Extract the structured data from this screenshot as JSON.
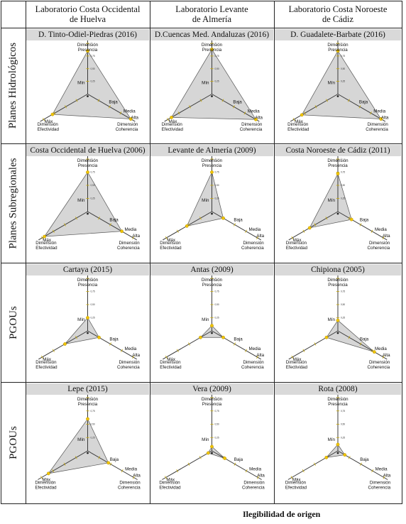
{
  "columns": [
    "Laboratorio Costa Occidental\nde Huelva",
    "Laboratorio Levante\nde Almería",
    "Laboratorio Costa Noroeste\nde Cádiz"
  ],
  "rows": [
    "Planes Hidrológicos",
    "Planes Subregionales",
    "PGOUs",
    "PGOUs"
  ],
  "axis_labels": {
    "presencia": "Dimensión\nPresencia",
    "efectividad": "Dimensión\nEfectividad",
    "coherencia": "Dimensión\nCoherencia"
  },
  "scale_labels": {
    "max": "Máx",
    "min": "Mín",
    "baja": "Baja",
    "media": "Media",
    "alta": "Alta"
  },
  "ticks": [
    "0,25",
    "0,50",
    "0,75",
    "1"
  ],
  "footer": "Ilegibilidad de origen",
  "colors": {
    "fill": "#c8c8c8",
    "stroke": "#555555",
    "axis": "#3a3a3a",
    "ticks": "#c8a800",
    "points": "#f0c400",
    "header_bg": "#d9d9d9"
  },
  "chart_data": [
    {
      "type": "radar",
      "title": "D. Tinto-Odiel-Piedras (2016)",
      "axes": [
        "Dimensión Presencia",
        "Dimensión Coherencia",
        "Dimensión Efectividad"
      ],
      "values": [
        0.85,
        0.98,
        0.8
      ],
      "ylim": [
        0,
        1
      ]
    },
    {
      "type": "radar",
      "title": "D.Cuencas Med. Andaluzas (2016)",
      "axes": [
        "Dimensión Presencia",
        "Dimensión Coherencia",
        "Dimensión Efectividad"
      ],
      "values": [
        0.88,
        1.0,
        0.92
      ],
      "ylim": [
        0,
        1
      ]
    },
    {
      "type": "radar",
      "title": "D. Guadalete-Barbate (2016)",
      "axes": [
        "Dimensión Presencia",
        "Dimensión Coherencia",
        "Dimensión Efectividad"
      ],
      "values": [
        0.85,
        0.98,
        0.82
      ],
      "ylim": [
        0,
        1
      ]
    },
    {
      "type": "radar",
      "title": "Costa Occidental de Huelva (2006)",
      "axes": [
        "Dimensión Presencia",
        "Dimensión Coherencia",
        "Dimensión Efectividad"
      ],
      "values": [
        0.75,
        0.75,
        0.95
      ],
      "ylim": [
        0,
        1
      ]
    },
    {
      "type": "radar",
      "title": "Levante de Almería (2009)",
      "axes": [
        "Dimensión Presencia",
        "Dimensión Coherencia",
        "Dimensión Efectividad"
      ],
      "values": [
        0.75,
        0.25,
        0.55
      ],
      "ylim": [
        0,
        1
      ]
    },
    {
      "type": "radar",
      "title": "Costa Noroeste de Cádiz (2011)",
      "axes": [
        "Dimensión Presencia",
        "Dimensión Coherencia",
        "Dimensión Efectividad"
      ],
      "values": [
        0.72,
        0.3,
        0.62
      ],
      "ylim": [
        0,
        1
      ]
    },
    {
      "type": "radar",
      "title": "Cartaya (2015)",
      "axes": [
        "Dimensión Presencia",
        "Dimensión Coherencia",
        "Dimensión Efectividad"
      ],
      "values": [
        0.25,
        0.25,
        0.5
      ],
      "ylim": [
        0,
        1
      ]
    },
    {
      "type": "radar",
      "title": "Antas (2009)",
      "axes": [
        "Dimensión Presencia",
        "Dimensión Coherencia",
        "Dimensión Efectividad"
      ],
      "values": [
        0.1,
        0.25,
        0.25
      ],
      "ylim": [
        0,
        1
      ]
    },
    {
      "type": "radar",
      "title": "Chipiona (2005)",
      "axes": [
        "Dimensión Presencia",
        "Dimensión Coherencia",
        "Dimensión Efectividad"
      ],
      "values": [
        0.2,
        0.8,
        0.25
      ],
      "ylim": [
        0,
        1
      ]
    },
    {
      "type": "radar",
      "title": "Lepe (2015)",
      "axes": [
        "Dimensión Presencia",
        "Dimensión Coherencia",
        "Dimensión Efectividad"
      ],
      "values": [
        0.6,
        0.45,
        0.85
      ],
      "ylim": [
        0,
        1
      ]
    },
    {
      "type": "radar",
      "title": "Vera (2009)",
      "axes": [
        "Dimensión Presencia",
        "Dimensión Coherencia",
        "Dimensión Efectividad"
      ],
      "values": [
        0.08,
        0.28,
        0.08
      ],
      "ylim": [
        0,
        1
      ]
    },
    {
      "type": "radar",
      "title": "Rota (2008)",
      "axes": [
        "Dimensión Presencia",
        "Dimensión Coherencia",
        "Dimensión Efectividad"
      ],
      "values": [
        0.12,
        0.15,
        0.25
      ],
      "ylim": [
        0,
        1
      ]
    }
  ]
}
